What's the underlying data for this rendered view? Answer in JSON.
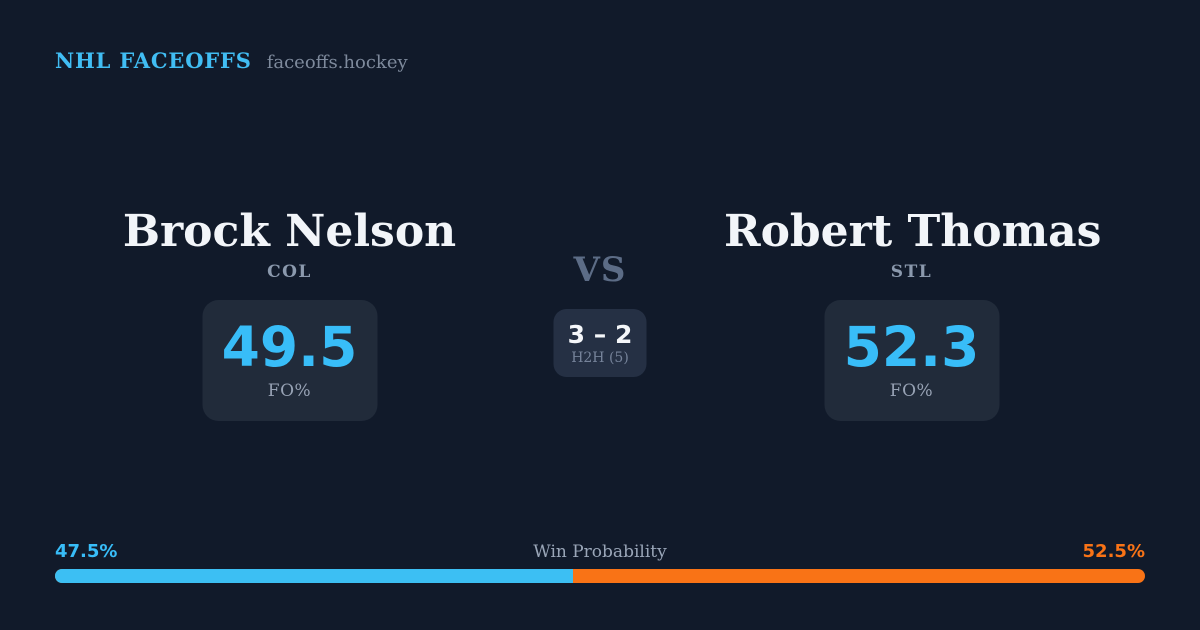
{
  "header": {
    "title": "NHL FACEOFFS",
    "subtitle": "faceoffs.hockey"
  },
  "matchup": {
    "vs_label": "VS",
    "h2h": {
      "score": "3 – 2",
      "label": "H2H (5)"
    },
    "players": [
      {
        "name": "Brock Nelson",
        "team": "COL",
        "stat_value": "49.5",
        "stat_label": "FO%"
      },
      {
        "name": "Robert Thomas",
        "team": "STL",
        "stat_value": "52.3",
        "stat_label": "FO%"
      }
    ]
  },
  "win_probability": {
    "label": "Win Probability",
    "left_pct": "47.5%",
    "right_pct": "52.5%",
    "left_value": 47.5,
    "right_value": 52.5,
    "left_width": "47.5%"
  },
  "colors": {
    "background": "#111a2a",
    "card": "#212b3a",
    "h2h_box": "#253044",
    "accent_blue": "#38bdf8",
    "accent_orange": "#f97316",
    "text_white": "#f2f5f9",
    "text_gray": "#8b99ad",
    "vs_gray": "#5c6c86"
  }
}
